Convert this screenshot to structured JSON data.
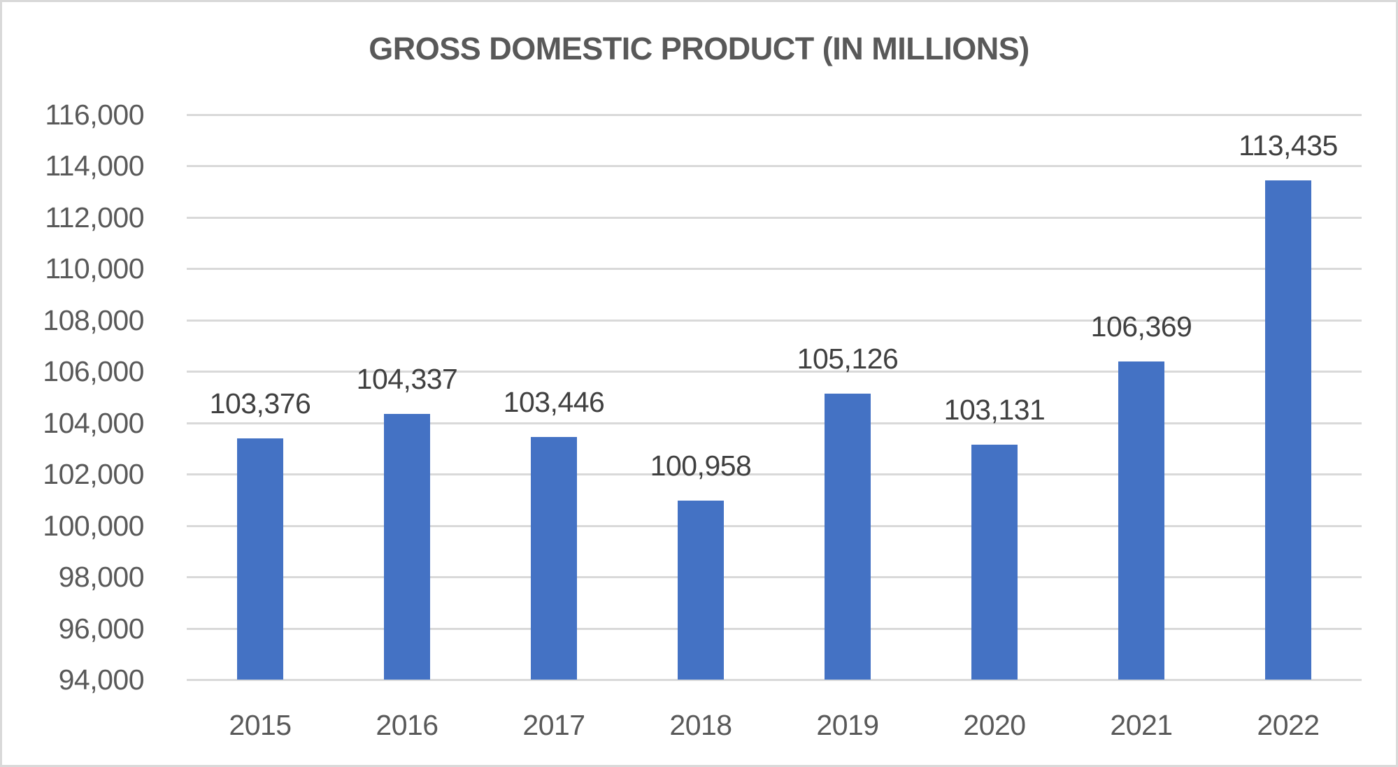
{
  "chart_data": {
    "type": "bar",
    "title": "GROSS DOMESTIC PRODUCT (IN MILLIONS)",
    "xlabel": "",
    "ylabel": "",
    "categories": [
      "2015",
      "2016",
      "2017",
      "2018",
      "2019",
      "2020",
      "2021",
      "2022"
    ],
    "values": [
      103376,
      104337,
      103446,
      100958,
      105126,
      103131,
      106369,
      113435
    ],
    "data_labels": [
      "103,376",
      "104,337",
      "103,446",
      "100,958",
      "105,126",
      "103,131",
      "106,369",
      "113,435"
    ],
    "ylim": [
      94000,
      116000
    ],
    "yticks": [
      94000,
      96000,
      98000,
      100000,
      102000,
      104000,
      106000,
      108000,
      110000,
      112000,
      114000,
      116000
    ],
    "ytick_labels": [
      "94,000",
      "96,000",
      "98,000",
      "100,000",
      "102,000",
      "104,000",
      "106,000",
      "108,000",
      "110,000",
      "112,000",
      "114,000",
      "116,000"
    ],
    "grid": true,
    "legend": "none",
    "bar_color": "#4472c4"
  },
  "colors": {
    "bar": "#4472c4",
    "gridline": "#d9d9d9",
    "axis_text": "#595959",
    "data_label_text": "#404040",
    "border": "#d9d9d9"
  }
}
